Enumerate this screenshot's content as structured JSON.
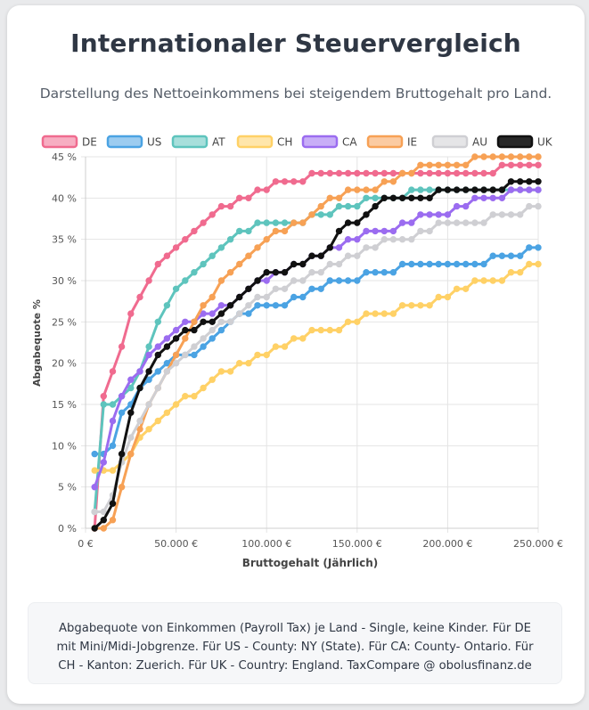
{
  "header": {
    "title": "Internationaler Steuervergleich",
    "subtitle": "Darstellung des Nettoeinkommens bei steigendem Bruttogehalt pro Land."
  },
  "footer": {
    "note": "Abgabequote von Einkommen (Payroll Tax) je Land - Single, keine Kinder. Für DE mit Mini/Midi-Jobgrenze. Für US - County: NY (State). Für CA: County- Ontario. Für CH - Kanton: Zuerich. Für UK - Country: England. TaxCompare @ obolusfinanz.de"
  },
  "chart_data": {
    "type": "line",
    "xlabel": "Bruttogehalt (Jährlich)",
    "ylabel": "Abgabequote %",
    "xlim": [
      0,
      250000
    ],
    "ylim": [
      0,
      45
    ],
    "xticks": [
      0,
      50000,
      100000,
      150000,
      200000,
      250000
    ],
    "xtick_labels": [
      "0 €",
      "50.000 €",
      "100.000 €",
      "150.000 €",
      "200.000 €",
      "250.000 €"
    ],
    "yticks": [
      0,
      5,
      10,
      15,
      20,
      25,
      30,
      35,
      40,
      45
    ],
    "ytick_labels": [
      "0 %",
      "5 %",
      "10 %",
      "15 %",
      "20 %",
      "25 %",
      "30 %",
      "35 %",
      "40 %",
      "45 %"
    ],
    "grid": true,
    "legend_position": "top",
    "series": [
      {
        "name": "DE",
        "color": "#f06b8f",
        "x": [
          5000,
          8000,
          10000,
          15000,
          20000,
          25000,
          30000,
          35000,
          40000,
          50000,
          60000,
          70000,
          80000,
          90000,
          100000,
          110000,
          120000,
          125000,
          150000,
          200000,
          225000,
          232000,
          240000,
          250000
        ],
        "y": [
          0,
          9,
          16,
          19,
          22,
          26,
          28,
          30,
          32,
          34,
          36,
          38,
          39,
          40,
          41,
          42,
          42,
          43,
          43,
          43,
          43,
          44,
          44,
          44
        ]
      },
      {
        "name": "US",
        "color": "#4ba3e3",
        "x": [
          5000,
          8000,
          10000,
          15000,
          20000,
          25000,
          30000,
          35000,
          40000,
          50000,
          60000,
          70000,
          80000,
          90000,
          100000,
          110000,
          120000,
          130000,
          140000,
          150000,
          160000,
          170000,
          180000,
          200000,
          220000,
          225000,
          240000,
          250000
        ],
        "y": [
          9,
          9,
          9,
          10,
          14,
          15,
          17,
          18,
          19,
          21,
          21,
          23,
          25,
          26,
          27,
          27,
          28,
          29,
          30,
          30,
          31,
          31,
          32,
          32,
          32,
          33,
          33,
          34
        ]
      },
      {
        "name": "AT",
        "color": "#5ec4bd",
        "x": [
          5000,
          8000,
          10000,
          15000,
          20000,
          25000,
          30000,
          35000,
          40000,
          50000,
          60000,
          70000,
          80000,
          90000,
          100000,
          120000,
          130000,
          150000,
          160000,
          170000,
          185000,
          200000,
          220000,
          250000
        ],
        "y": [
          2,
          5,
          15,
          15,
          16,
          17,
          19,
          22,
          25,
          29,
          31,
          33,
          35,
          36,
          37,
          37,
          38,
          39,
          40,
          40,
          41,
          41,
          41,
          41
        ]
      },
      {
        "name": "CH",
        "color": "#ffd166",
        "x": [
          5000,
          8000,
          10000,
          15000,
          20000,
          25000,
          30000,
          35000,
          40000,
          50000,
          60000,
          70000,
          80000,
          90000,
          100000,
          110000,
          120000,
          130000,
          140000,
          150000,
          160000,
          170000,
          180000,
          190000,
          200000,
          210000,
          220000,
          230000,
          240000,
          250000
        ],
        "y": [
          7,
          7,
          7,
          7,
          8,
          9,
          11,
          12,
          13,
          15,
          16,
          18,
          19,
          20,
          21,
          22,
          23,
          24,
          24,
          25,
          26,
          26,
          27,
          27,
          28,
          29,
          30,
          30,
          31,
          32
        ]
      },
      {
        "name": "CA",
        "color": "#9b6cf0",
        "x": [
          5000,
          8000,
          10000,
          15000,
          20000,
          25000,
          30000,
          35000,
          40000,
          50000,
          60000,
          70000,
          80000,
          90000,
          100000,
          110000,
          120000,
          130000,
          140000,
          150000,
          160000,
          170000,
          180000,
          190000,
          200000,
          210000,
          220000,
          230000,
          240000,
          250000
        ],
        "y": [
          5,
          6,
          8,
          13,
          16,
          18,
          19,
          21,
          22,
          24,
          25,
          26,
          27,
          29,
          30,
          31,
          32,
          33,
          34,
          35,
          36,
          36,
          37,
          38,
          38,
          39,
          40,
          40,
          41,
          41
        ]
      },
      {
        "name": "IE",
        "color": "#f7a155",
        "x": [
          5000,
          10000,
          15000,
          20000,
          25000,
          30000,
          35000,
          40000,
          50000,
          60000,
          70000,
          80000,
          90000,
          100000,
          110000,
          120000,
          130000,
          140000,
          150000,
          160000,
          170000,
          180000,
          190000,
          200000,
          210000,
          220000,
          230000,
          250000
        ],
        "y": [
          0,
          0,
          1,
          5,
          9,
          12,
          15,
          17,
          21,
          25,
          28,
          31,
          33,
          35,
          36,
          37,
          39,
          40,
          41,
          41,
          42,
          43,
          44,
          44,
          44,
          45,
          45,
          45
        ]
      },
      {
        "name": "AU",
        "color": "#cfcfd3",
        "x": [
          5000,
          10000,
          15000,
          20000,
          25000,
          30000,
          35000,
          40000,
          50000,
          60000,
          70000,
          80000,
          90000,
          100000,
          110000,
          120000,
          130000,
          140000,
          150000,
          160000,
          170000,
          180000,
          190000,
          200000,
          210000,
          220000,
          230000,
          240000,
          250000
        ],
        "y": [
          2,
          2,
          4,
          8,
          11,
          13,
          15,
          17,
          20,
          22,
          24,
          25,
          27,
          28,
          29,
          30,
          31,
          32,
          33,
          34,
          35,
          35,
          36,
          37,
          37,
          37,
          38,
          38,
          39
        ]
      },
      {
        "name": "UK",
        "color": "#111111",
        "x": [
          5000,
          8000,
          10000,
          15000,
          20000,
          25000,
          30000,
          35000,
          40000,
          50000,
          60000,
          70000,
          80000,
          90000,
          100000,
          110000,
          120000,
          130000,
          135000,
          140000,
          150000,
          160000,
          170000,
          180000,
          190000,
          200000,
          210000,
          220000,
          230000,
          235000,
          250000
        ],
        "y": [
          0,
          1,
          1,
          3,
          9,
          14,
          17,
          19,
          21,
          23,
          24,
          25,
          27,
          29,
          31,
          31,
          32,
          33,
          34,
          36,
          37,
          39,
          40,
          40,
          40,
          41,
          41,
          41,
          41,
          42,
          42
        ]
      }
    ]
  }
}
